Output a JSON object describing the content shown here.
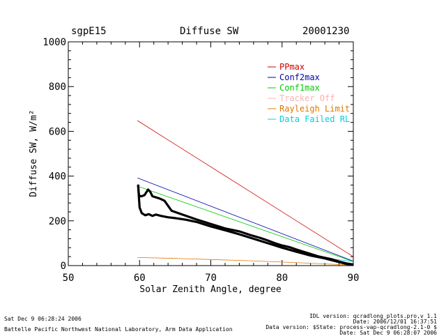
{
  "header": {
    "site": "sgpE15",
    "title": "Diffuse SW",
    "date": "20001230"
  },
  "footer": {
    "left_line1": "Sat Dec  9 06:28:24 2006",
    "left_line2": "Battelle Pacific Northwest National Laboratory, Arm Data Application",
    "right_line1": "IDL version: qcradlong_plots.pro,v 1.1",
    "right_line2": "Date: 2006/12/01 16:37:51",
    "right_line3": "Data version: $State: process-vap-qcradlong-2.1-0 $",
    "right_line4": "Date: Sat Dec  9 06:28:07 2006"
  },
  "colors": {
    "PPmax": "#d00000",
    "Conf2max": "#0000b0",
    "Conf1max": "#00cc00",
    "Tracker Off": "#ffb0b0",
    "Rayleigh Limit": "#e07800",
    "Data Failed RL": "#00d0e0",
    "data": "#000000"
  },
  "chart_data": {
    "type": "line",
    "title": "Diffuse SW",
    "xlabel": "Solar Zenith Angle, degree",
    "ylabel": "Diffuse SW, W/m²",
    "xlim": [
      50,
      90
    ],
    "ylim": [
      0,
      1000
    ],
    "xticks": [
      50,
      60,
      70,
      80,
      90
    ],
    "yticks": [
      0,
      200,
      400,
      600,
      800,
      1000
    ],
    "legend_position": "top-right",
    "grid": false,
    "series": [
      {
        "name": "PPmax",
        "x": [
          59.7,
          90
        ],
        "y": [
          648,
          40
        ]
      },
      {
        "name": "Conf2max",
        "x": [
          59.7,
          90
        ],
        "y": [
          392,
          20
        ]
      },
      {
        "name": "Conf1max",
        "x": [
          59.7,
          90
        ],
        "y": [
          355,
          18
        ]
      },
      {
        "name": "Tracker Off",
        "x": [],
        "y": []
      },
      {
        "name": "Rayleigh Limit",
        "x": [
          59.7,
          65,
          70,
          75,
          80,
          85,
          90
        ],
        "y": [
          36,
          32,
          27,
          22,
          16,
          9,
          2
        ]
      },
      {
        "name": "Data Failed RL",
        "x": [
          87,
          90
        ],
        "y": [
          30,
          18
        ]
      },
      {
        "name": "",
        "x": [
          59.8,
          59.9,
          60.0,
          60.3,
          60.7,
          61.2,
          61.5,
          61.8,
          62.3,
          62.8,
          63.5,
          64.5,
          66,
          68,
          70,
          72,
          74,
          75.5,
          77,
          78,
          79,
          80,
          81,
          82,
          83,
          84,
          85,
          86,
          87,
          88,
          89,
          90
        ],
        "y": [
          362,
          320,
          310,
          310,
          315,
          340,
          330,
          310,
          305,
          300,
          290,
          245,
          228,
          206,
          186,
          166,
          153,
          137,
          123,
          112,
          100,
          90,
          83,
          72,
          62,
          52,
          42,
          35,
          28,
          18,
          10,
          5
        ]
      },
      {
        "name": "",
        "x": [
          59.8,
          60.0,
          60.3,
          60.8,
          61.3,
          61.8,
          62.3,
          63.0,
          64.0,
          65.0,
          66.5,
          68,
          70,
          72,
          74,
          76,
          78,
          80,
          82,
          84,
          86,
          88,
          89,
          90
        ],
        "y": [
          360,
          260,
          235,
          225,
          230,
          222,
          228,
          222,
          216,
          212,
          205,
          195,
          175,
          158,
          140,
          120,
          100,
          80,
          62,
          45,
          32,
          16,
          8,
          3
        ]
      }
    ]
  }
}
